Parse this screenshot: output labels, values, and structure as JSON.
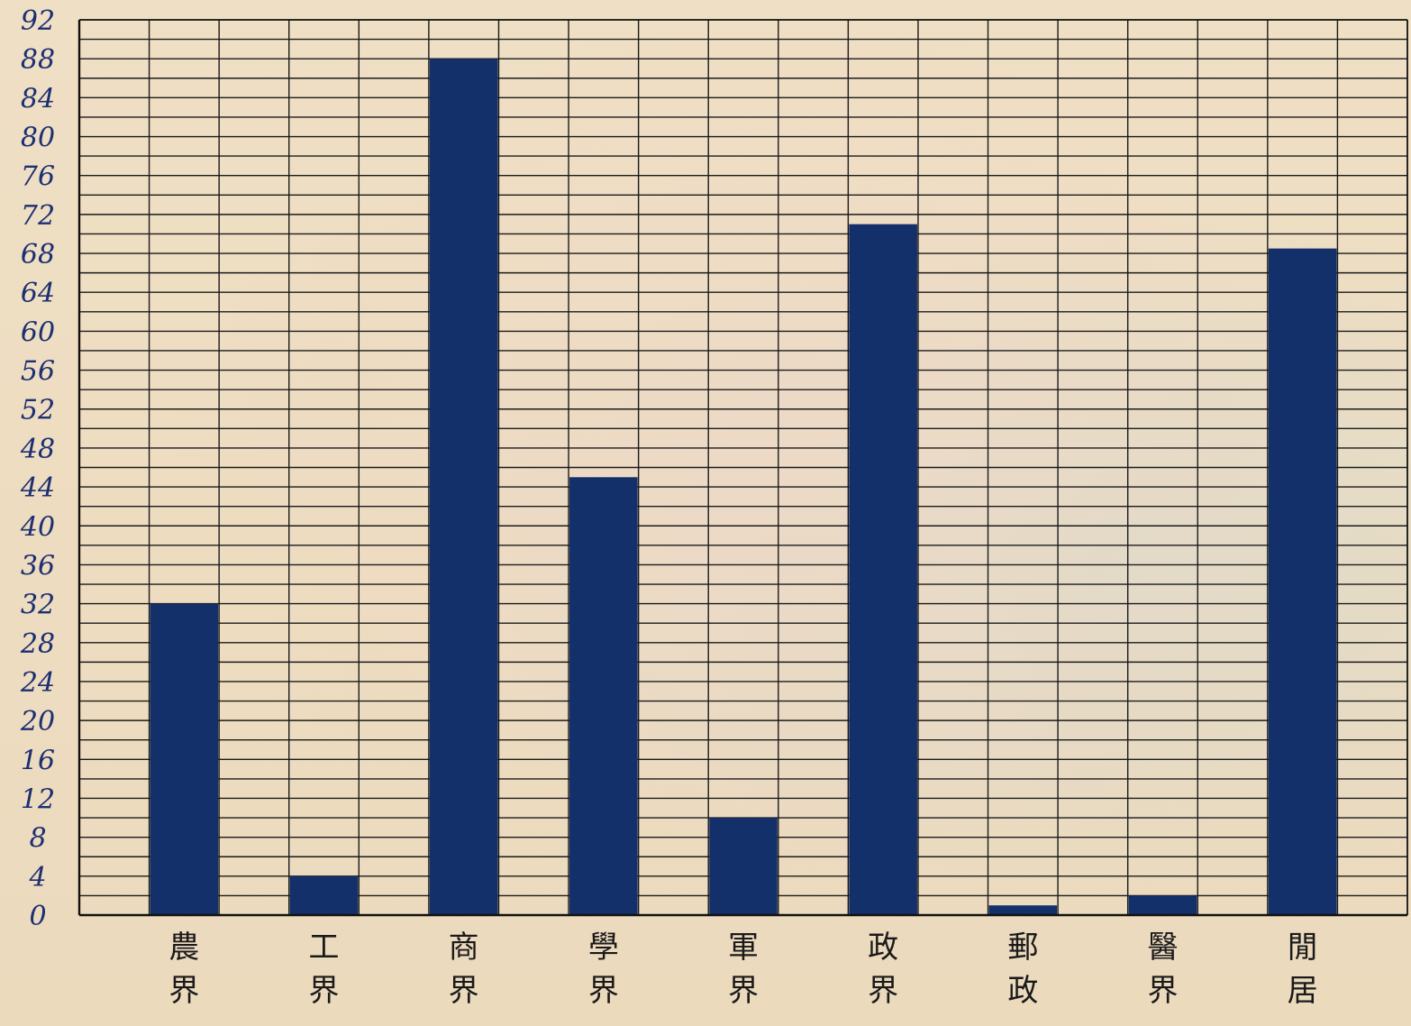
{
  "chart_data": {
    "type": "bar",
    "title": "",
    "xlabel": "",
    "ylabel": "",
    "categories": [
      "農界",
      "工界",
      "商界",
      "學界",
      "軍界",
      "政界",
      "郵政",
      "醫界",
      "閒居"
    ],
    "values": [
      32,
      4,
      88,
      45,
      10,
      71,
      1,
      2,
      68.5
    ],
    "ylim": [
      0,
      92
    ],
    "yticks": [
      0,
      4,
      8,
      12,
      16,
      20,
      24,
      28,
      32,
      36,
      40,
      44,
      48,
      52,
      56,
      60,
      64,
      68,
      72,
      76,
      80,
      84,
      88,
      92
    ],
    "ytick_labels": [
      "0",
      "4",
      "8",
      "12",
      "16",
      "20",
      "24",
      "28",
      "32",
      "36",
      "40",
      "44",
      "48",
      "52",
      "56",
      "60",
      "64",
      "68",
      "72",
      "76",
      "80",
      "84",
      "88",
      "92"
    ],
    "grid": true,
    "bar_color": "#13306a",
    "grid_color": "#1a1a1a",
    "ytick_color": "#1c2f72"
  }
}
